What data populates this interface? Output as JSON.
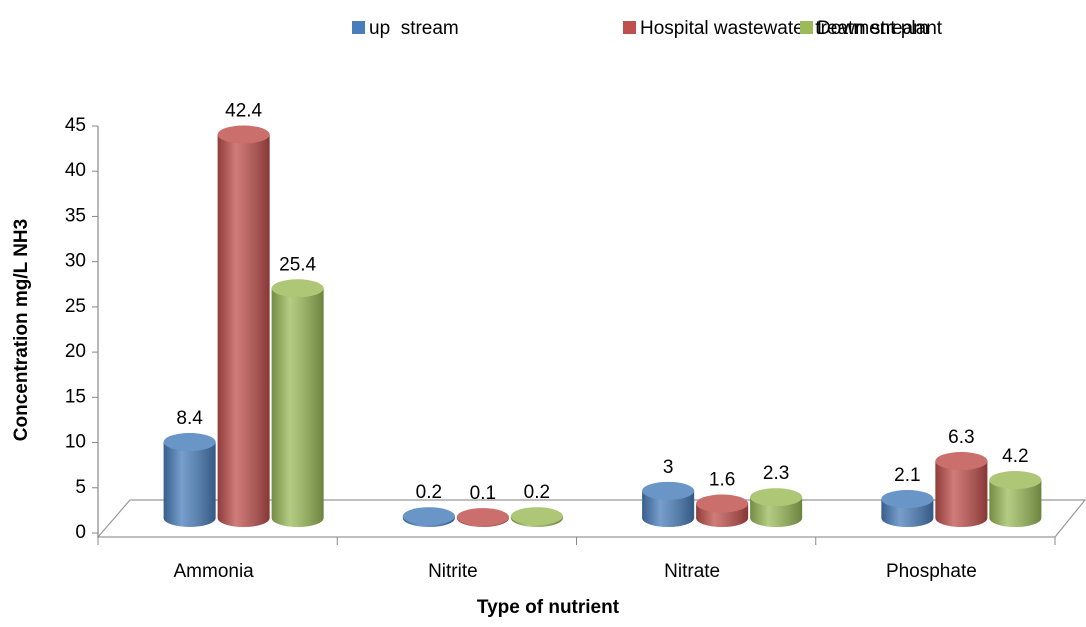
{
  "chart_data": {
    "type": "bar3d",
    "categories": [
      "Ammonia",
      "Nitrite",
      "Nitrate",
      "Phosphate"
    ],
    "series": [
      {
        "name": "up  stream",
        "color": "#4a7ebb",
        "values": [
          8.4,
          0.2,
          3,
          2.1
        ]
      },
      {
        "name": "Hospital wastewater treatment plant",
        "color": "#c0504d",
        "values": [
          42.4,
          0.1,
          1.6,
          6.3
        ]
      },
      {
        "name": "Down stream",
        "color": "#9bbb59",
        "values": [
          25.4,
          0.2,
          2.3,
          4.2
        ]
      }
    ],
    "xlabel": "Type of nutrient",
    "ylabel": "Concentration mg/L NH3",
    "ylim": [
      0,
      45
    ],
    "yticks": [
      0,
      5,
      10,
      15,
      20,
      25,
      30,
      35,
      40,
      45
    ],
    "legend": "top"
  }
}
